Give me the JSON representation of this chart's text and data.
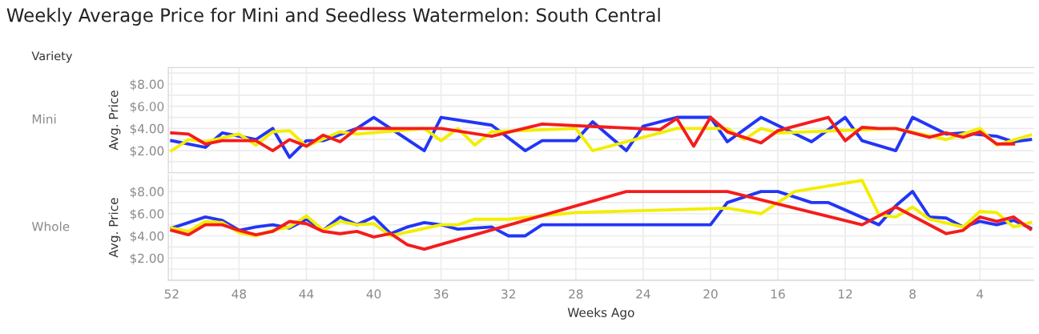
{
  "chart_data": [
    {
      "type": "line",
      "title": "Weekly Average Price for Mini and Seedless Watermelon: South Central",
      "ylabel": "Avg. Price",
      "annotations": [
        "Variety",
        "Mini"
      ],
      "tick_labels": "y",
      "grid": true,
      "xlim": [
        52.2,
        0.8
      ],
      "xticks": [
        52,
        48,
        44,
        40,
        36,
        32,
        28,
        24,
        20,
        16,
        12,
        8,
        4
      ],
      "ylim": [
        0,
        9.5
      ],
      "yticks": [
        {
          "value": 1,
          "label": null
        },
        {
          "value": 2,
          "label": "$2.00"
        },
        {
          "value": 3,
          "label": null
        },
        {
          "value": 4,
          "label": "$4.00"
        },
        {
          "value": 5,
          "label": null
        },
        {
          "value": 6,
          "label": "$6.00"
        },
        {
          "value": 7,
          "label": null
        },
        {
          "value": 8,
          "label": "$8.00"
        },
        {
          "value": 9,
          "label": null
        }
      ],
      "series": [
        {
          "color": "#2236f5",
          "x": [
            52,
            50,
            49,
            47,
            46,
            45,
            44,
            43,
            41,
            40,
            37,
            36,
            33,
            31,
            30,
            28,
            27,
            25,
            24,
            22,
            20,
            19,
            17,
            14,
            12,
            11,
            9,
            8,
            6,
            5,
            3,
            2,
            1
          ],
          "values": [
            2.9,
            2.3,
            3.6,
            3.0,
            4.0,
            1.4,
            2.9,
            2.9,
            4.0,
            5.0,
            2.0,
            5.0,
            4.3,
            2.0,
            2.9,
            2.9,
            4.6,
            2.0,
            4.2,
            5.0,
            5.0,
            2.8,
            5.0,
            2.8,
            5.0,
            2.9,
            2.0,
            5.0,
            3.5,
            3.6,
            3.3,
            2.8,
            3.0
          ]
        },
        {
          "color": "#f2ee00",
          "x": [
            52,
            51,
            50,
            48,
            47,
            46,
            45,
            44,
            42,
            41,
            37,
            36,
            35,
            34,
            33,
            28,
            27,
            22,
            19,
            18,
            17,
            16,
            9,
            6,
            4,
            3,
            1
          ],
          "values": [
            2.0,
            3.0,
            2.8,
            3.5,
            2.5,
            3.7,
            3.8,
            2.4,
            3.7,
            3.5,
            4.0,
            2.9,
            4.0,
            2.5,
            3.7,
            4.0,
            2.0,
            4.0,
            4.0,
            3.0,
            4.0,
            3.6,
            4.0,
            3.0,
            4.0,
            2.5,
            3.4
          ]
        },
        {
          "color": "#f51c1c",
          "x": [
            52,
            51,
            50,
            49,
            47,
            46,
            45,
            44,
            43,
            42,
            41,
            36,
            33,
            30,
            23,
            22,
            21,
            20,
            19,
            17,
            16,
            13,
            12,
            11,
            10,
            9,
            7,
            6,
            5,
            4,
            3,
            2
          ],
          "values": [
            3.6,
            3.5,
            2.6,
            2.9,
            2.9,
            2.0,
            3.0,
            2.4,
            3.4,
            2.8,
            4.0,
            4.0,
            3.3,
            4.4,
            3.9,
            4.9,
            2.4,
            5.0,
            3.7,
            2.7,
            3.8,
            5.0,
            2.9,
            4.1,
            4.0,
            4.0,
            3.2,
            3.6,
            3.2,
            3.7,
            2.6,
            2.6
          ]
        }
      ]
    },
    {
      "type": "line",
      "xlabel": "Weeks Ago",
      "ylabel": "Avg. Price",
      "annotations": [
        "Whole"
      ],
      "grid": true,
      "xlim": [
        52.2,
        0.8
      ],
      "xticks": [
        52,
        48,
        44,
        40,
        36,
        32,
        28,
        24,
        20,
        16,
        12,
        8,
        4
      ],
      "ylim": [
        0,
        9.5
      ],
      "yticks": [
        {
          "value": 1,
          "label": null
        },
        {
          "value": 2,
          "label": "$2.00"
        },
        {
          "value": 3,
          "label": null
        },
        {
          "value": 4,
          "label": "$4.00"
        },
        {
          "value": 5,
          "label": null
        },
        {
          "value": 6,
          "label": "$6.00"
        },
        {
          "value": 7,
          "label": null
        },
        {
          "value": 8,
          "label": "$8.00"
        },
        {
          "value": 9,
          "label": null
        }
      ],
      "series": [
        {
          "color": "#2236f5",
          "x": [
            52,
            51,
            50,
            49,
            48,
            47,
            46,
            45,
            44,
            43,
            42,
            41,
            40,
            39,
            38,
            37,
            36,
            35,
            33,
            32,
            31,
            30,
            20,
            19,
            17,
            16,
            14,
            13,
            10,
            9,
            8,
            7,
            6,
            5,
            4,
            3,
            2,
            1
          ],
          "values": [
            4.7,
            5.2,
            5.7,
            5.4,
            4.5,
            4.8,
            5.0,
            4.7,
            5.5,
            4.5,
            5.7,
            5.0,
            5.7,
            4.2,
            4.8,
            5.2,
            5.0,
            4.6,
            4.8,
            4.0,
            4.0,
            5.0,
            5.0,
            7.0,
            8.0,
            8.0,
            7.0,
            7.0,
            5.0,
            6.7,
            8.0,
            5.7,
            5.6,
            4.8,
            5.3,
            5.0,
            5.4,
            4.7
          ]
        },
        {
          "color": "#f2ee00",
          "x": [
            52,
            51,
            50,
            49,
            48,
            47,
            46,
            45,
            44,
            43,
            42,
            41,
            40,
            39,
            36,
            35,
            34,
            32,
            28,
            19,
            17,
            15,
            11,
            10,
            9,
            8,
            7,
            5,
            4,
            3,
            2,
            1
          ],
          "values": [
            4.7,
            4.4,
            5.3,
            5.2,
            4.3,
            4.0,
            4.5,
            4.8,
            5.8,
            4.5,
            5.3,
            5.0,
            5.1,
            4.0,
            5.0,
            5.0,
            5.5,
            5.5,
            6.1,
            6.5,
            6.0,
            8.0,
            9.0,
            5.9,
            5.7,
            6.6,
            5.5,
            4.8,
            6.2,
            6.1,
            4.8,
            5.2
          ]
        },
        {
          "color": "#f51c1c",
          "x": [
            52,
            51,
            50,
            49,
            48,
            47,
            46,
            45,
            44,
            43,
            42,
            41,
            40,
            39,
            38,
            37,
            25,
            19,
            11,
            9,
            6,
            5,
            4,
            3,
            2,
            1
          ],
          "values": [
            4.5,
            4.1,
            5.0,
            5.0,
            4.5,
            4.1,
            4.4,
            5.3,
            5.1,
            4.4,
            4.2,
            4.4,
            3.9,
            4.2,
            3.2,
            2.8,
            8.0,
            8.0,
            5.0,
            6.6,
            4.2,
            4.5,
            5.7,
            5.3,
            5.7,
            4.6
          ]
        }
      ]
    }
  ]
}
